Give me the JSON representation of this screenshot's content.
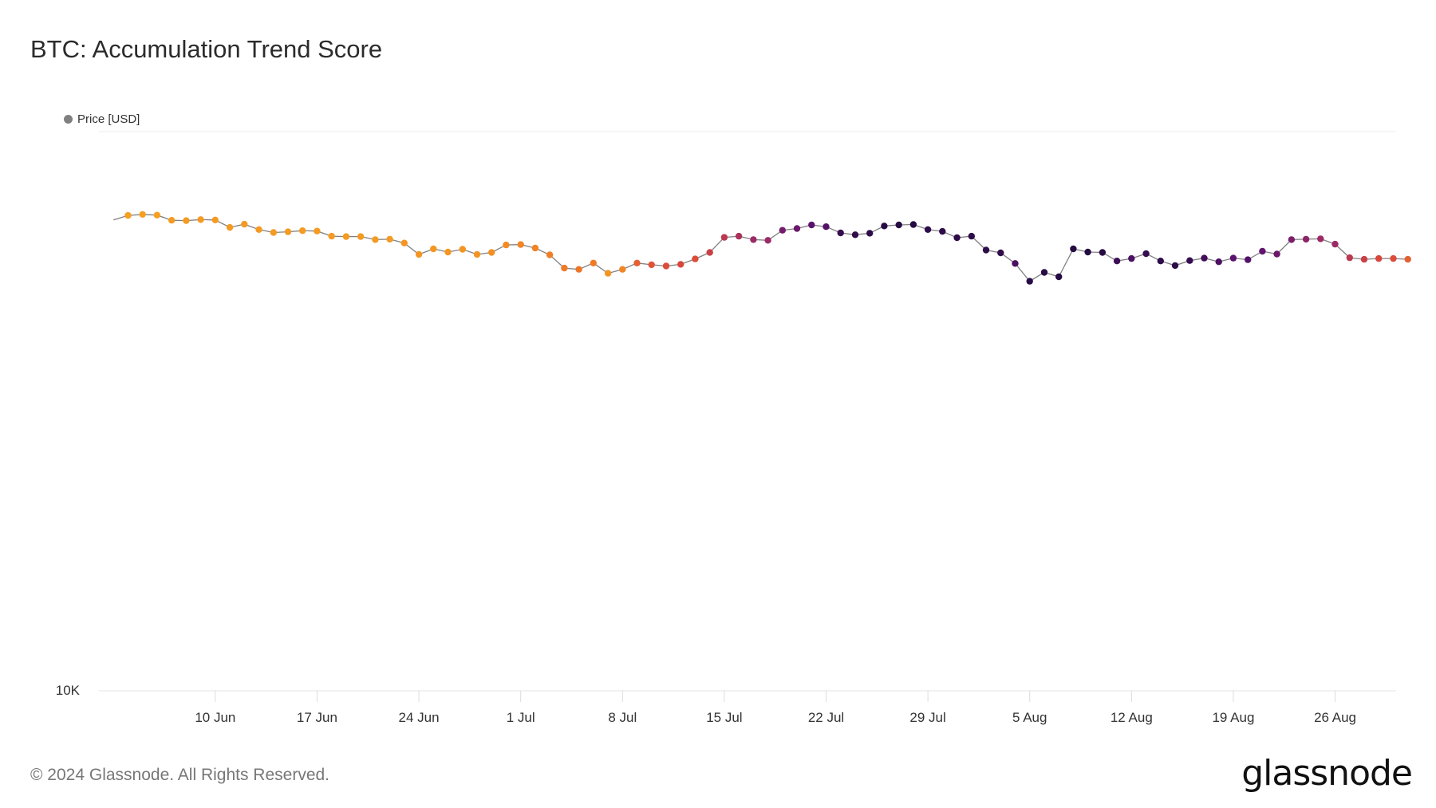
{
  "title": "BTC: Accumulation Trend Score",
  "legend": {
    "label": "Price [USD]",
    "color": "#808080"
  },
  "footer": {
    "copyright": "© 2024 Glassnode. All Rights Reserved.",
    "brand": "glassnode"
  },
  "chart_data": {
    "type": "line",
    "title": "BTC: Accumulation Trend Score",
    "xlabel": "",
    "ylabel": "",
    "y_scale": "log",
    "y_tick_labels": [
      "10K"
    ],
    "x_tick_labels": [
      "10 Jun",
      "17 Jun",
      "24 Jun",
      "1 Jul",
      "8 Jul",
      "15 Jul",
      "22 Jul",
      "29 Jul",
      "5 Aug",
      "12 Aug",
      "19 Aug",
      "26 Aug"
    ],
    "x_range": [
      "2024-06-03",
      "2024-08-31"
    ],
    "ylim": [
      10000,
      100000
    ],
    "grid": true,
    "legend_position": "top-left",
    "series": [
      {
        "name": "Price [USD]",
        "line_color": "#808080",
        "point_color_scale": [
          "#f7a520",
          "#f07a26",
          "#d9473c",
          "#9c2a66",
          "#5a126e",
          "#1e0a3c"
        ],
        "dates": [
          "2024-06-03",
          "2024-06-04",
          "2024-06-05",
          "2024-06-06",
          "2024-06-07",
          "2024-06-08",
          "2024-06-09",
          "2024-06-10",
          "2024-06-11",
          "2024-06-12",
          "2024-06-13",
          "2024-06-14",
          "2024-06-15",
          "2024-06-16",
          "2024-06-17",
          "2024-06-18",
          "2024-06-19",
          "2024-06-20",
          "2024-06-21",
          "2024-06-22",
          "2024-06-23",
          "2024-06-24",
          "2024-06-25",
          "2024-06-26",
          "2024-06-27",
          "2024-06-28",
          "2024-06-29",
          "2024-06-30",
          "2024-07-01",
          "2024-07-02",
          "2024-07-03",
          "2024-07-04",
          "2024-07-05",
          "2024-07-06",
          "2024-07-07",
          "2024-07-08",
          "2024-07-09",
          "2024-07-10",
          "2024-07-11",
          "2024-07-12",
          "2024-07-13",
          "2024-07-14",
          "2024-07-15",
          "2024-07-16",
          "2024-07-17",
          "2024-07-18",
          "2024-07-19",
          "2024-07-20",
          "2024-07-21",
          "2024-07-22",
          "2024-07-23",
          "2024-07-24",
          "2024-07-25",
          "2024-07-26",
          "2024-07-27",
          "2024-07-28",
          "2024-07-29",
          "2024-07-30",
          "2024-07-31",
          "2024-08-01",
          "2024-08-02",
          "2024-08-03",
          "2024-08-04",
          "2024-08-05",
          "2024-08-06",
          "2024-08-07",
          "2024-08-08",
          "2024-08-09",
          "2024-08-10",
          "2024-08-11",
          "2024-08-12",
          "2024-08-13",
          "2024-08-14",
          "2024-08-15",
          "2024-08-16",
          "2024-08-17",
          "2024-08-18",
          "2024-08-19",
          "2024-08-20",
          "2024-08-21",
          "2024-08-22",
          "2024-08-23",
          "2024-08-24",
          "2024-08-25",
          "2024-08-26",
          "2024-08-27",
          "2024-08-28",
          "2024-08-29",
          "2024-08-30",
          "2024-08-31"
        ],
        "values": [
          69500,
          70800,
          71100,
          70900,
          69400,
          69300,
          69600,
          69500,
          67400,
          68300,
          66800,
          66000,
          66200,
          66500,
          66400,
          65000,
          64900,
          64900,
          64100,
          64200,
          63200,
          60300,
          61700,
          60900,
          61600,
          60300,
          60800,
          62700,
          62800,
          61900,
          60200,
          57000,
          56700,
          58200,
          55800,
          56700,
          58200,
          57800,
          57500,
          57900,
          59200,
          60800,
          64700,
          65000,
          64100,
          63900,
          66600,
          67100,
          68100,
          67600,
          65900,
          65400,
          65800,
          67800,
          68100,
          68200,
          66800,
          66300,
          64600,
          65000,
          61400,
          60700,
          58100,
          54000,
          56000,
          55000,
          61700,
          60900,
          60800,
          58700,
          59300,
          60500,
          58700,
          57600,
          58800,
          59400,
          58500,
          59400,
          59000,
          61100,
          60400,
          64100,
          64200,
          64300,
          62900,
          59500,
          59100,
          59300,
          59300,
          59100
        ],
        "scores": [
          0.97,
          0.97,
          0.97,
          0.97,
          0.95,
          0.95,
          0.95,
          0.95,
          0.95,
          0.95,
          0.95,
          0.95,
          0.95,
          0.95,
          0.95,
          0.95,
          0.95,
          0.95,
          0.95,
          0.95,
          0.93,
          0.93,
          0.93,
          0.93,
          0.92,
          0.92,
          0.9,
          0.88,
          0.85,
          0.84,
          0.82,
          0.8,
          0.78,
          0.8,
          0.92,
          0.85,
          0.7,
          0.65,
          0.62,
          0.6,
          0.62,
          0.55,
          0.5,
          0.45,
          0.4,
          0.4,
          0.28,
          0.25,
          0.2,
          0.18,
          0.08,
          0.06,
          0.05,
          0.03,
          0.02,
          0.02,
          0.05,
          0.05,
          0.05,
          0.05,
          0.05,
          0.06,
          0.15,
          0.03,
          0.03,
          0.02,
          0.02,
          0.02,
          0.03,
          0.1,
          0.15,
          0.08,
          0.05,
          0.05,
          0.08,
          0.12,
          0.15,
          0.2,
          0.18,
          0.22,
          0.25,
          0.3,
          0.35,
          0.4,
          0.4,
          0.5,
          0.55,
          0.6,
          0.62,
          0.7
        ]
      }
    ]
  }
}
